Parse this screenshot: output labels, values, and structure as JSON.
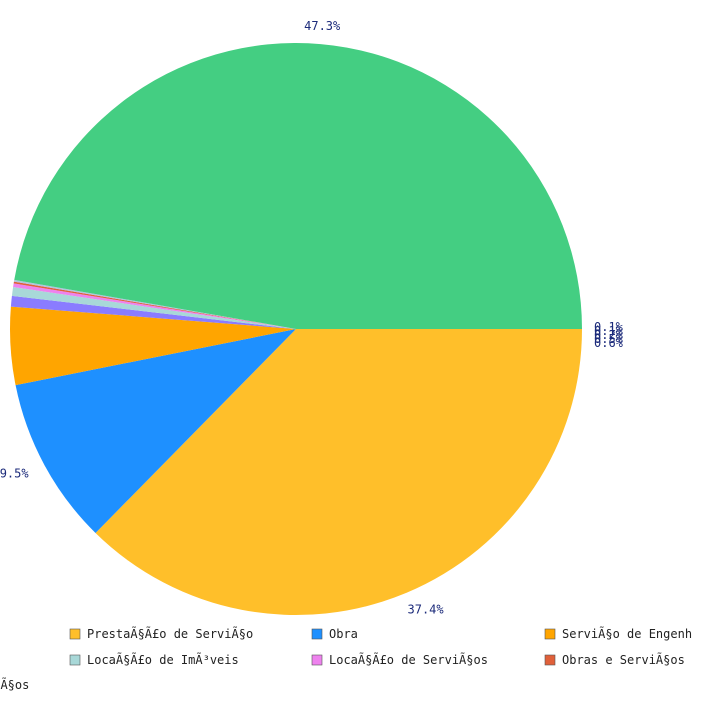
{
  "chart_data": {
    "type": "pie",
    "title": "",
    "slices": [
      {
        "label": "PrestaÃ§Ã£o de ServiÃ§o",
        "value": 37.4,
        "display": "37.4%",
        "color": "#FFBF2A"
      },
      {
        "label": "Obra",
        "value": 9.5,
        "display": "9.5%",
        "color": "#1E90FF"
      },
      {
        "label": "ServiÃ§o de Engenharia",
        "value": 4.4,
        "display": "4.4%",
        "color": "#FFA500"
      },
      {
        "label": "",
        "value": 0.6,
        "display": "0.6%",
        "color": "#8A7CFF"
      },
      {
        "label": "LocaÃ§Ã£o de ImÃ³veis",
        "value": 0.5,
        "display": "0.5%",
        "color": "#A8D8D8"
      },
      {
        "label": "LocaÃ§Ã£o de ServiÃ§os",
        "value": 0.2,
        "display": "0.2%",
        "color": "#EE82EE"
      },
      {
        "label": "Obras e ServiÃ§os",
        "value": 0.1,
        "display": "0.1%",
        "color": "#E0603A"
      },
      {
        "label": "",
        "value": 0.1,
        "display": "0.1%",
        "color": "#B0C4DE"
      },
      {
        "label": "",
        "value": 47.3,
        "display": "47.3%",
        "color": "#44CE82"
      }
    ],
    "legend": {
      "placement": "bottom",
      "items": [
        {
          "label": "PrestaÃ§Ã£o de ServiÃ§o",
          "color": "#FFBF2A"
        },
        {
          "label": "Obra",
          "color": "#1E90FF"
        },
        {
          "label": "ServiÃ§o de Engenh",
          "color": "#FFA500"
        },
        {
          "label": "LocaÃ§Ã£o de ImÃ³veis",
          "color": "#A8D8D8"
        },
        {
          "label": "LocaÃ§Ã£o de ServiÃ§os",
          "color": "#EE82EE"
        },
        {
          "label": "Obras e ServiÃ§os",
          "color": "#E0603A"
        },
        {
          "label": "viÃ§os",
          "color": ""
        }
      ]
    }
  }
}
